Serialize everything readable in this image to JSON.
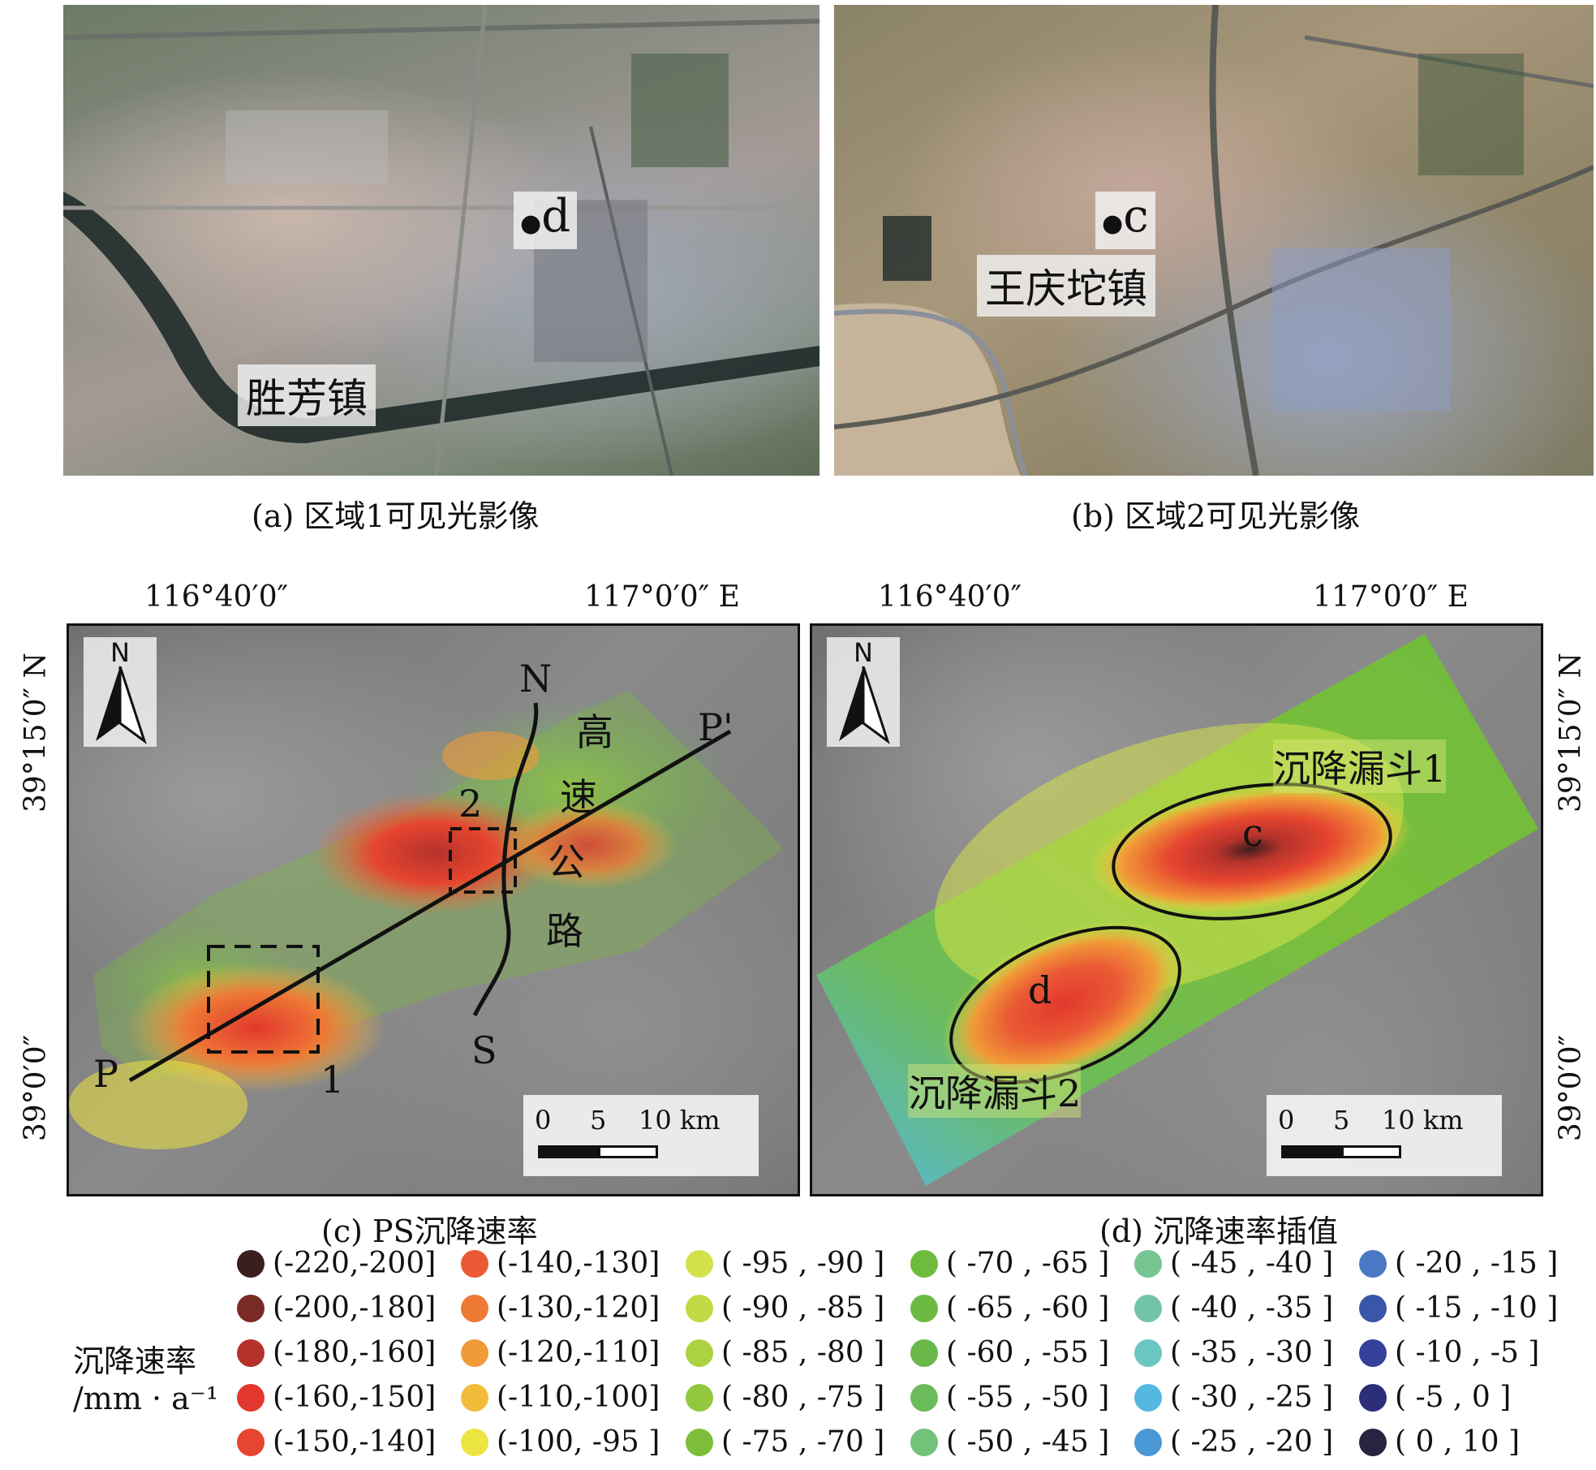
{
  "panels": {
    "a": {
      "caption": "(a) 区域1可见光影像",
      "place_label": "胜芳镇",
      "point_label": "d"
    },
    "b": {
      "caption": "(b) 区域2可见光影像",
      "place_label": "王庆坨镇",
      "point_label": "c"
    },
    "c": {
      "caption": "(c) PS沉降速率",
      "north": "N",
      "highway_label": [
        "高",
        "速",
        "公",
        "路"
      ],
      "highway_n": "N",
      "highway_s": "S",
      "profile_start": "P",
      "profile_end": "P'",
      "box1": "1",
      "box2": "2",
      "scale": {
        "t0": "0",
        "t5": "5",
        "t10": "10 km"
      }
    },
    "d": {
      "caption": "(d) 沉降速率插值",
      "north": "N",
      "funnel1": "沉降漏斗1",
      "funnel2": "沉降漏斗2",
      "point_c": "c",
      "point_d": "d",
      "scale": {
        "t0": "0",
        "t5": "5",
        "t10": "10 km"
      }
    }
  },
  "coords": {
    "lon1": "116°40′0″",
    "lon2": "117°0′0″  E",
    "lat1_left": "39°15′0″  N",
    "lat2_left": "39°0′0″",
    "lat1_right": "39°15′0″  N",
    "lat2_right": "39°0′0″"
  },
  "legend": {
    "title_line1": "沉降速率",
    "title_line2": "/mm · a⁻¹",
    "items": [
      {
        "label": "(-220,-200]",
        "color": "#3b1f1c"
      },
      {
        "label": "(-200,-180]",
        "color": "#7a2a24"
      },
      {
        "label": "(-180,-160]",
        "color": "#b5322c"
      },
      {
        "label": "(-160,-150]",
        "color": "#e2372e"
      },
      {
        "label": "(-150,-140]",
        "color": "#e6452f"
      },
      {
        "label": "(-140,-130]",
        "color": "#ea5a34"
      },
      {
        "label": "(-130,-120]",
        "color": "#ee7a35"
      },
      {
        "label": "(-120,-110]",
        "color": "#f19a38"
      },
      {
        "label": "(-110,-100]",
        "color": "#f2bc3b"
      },
      {
        "label": "(-100, -95 ]",
        "color": "#ece43f"
      },
      {
        "label": "( -95 , -90 ]",
        "color": "#d3e14a"
      },
      {
        "label": "( -90 , -85 ]",
        "color": "#c2da45"
      },
      {
        "label": "( -85 , -80 ]",
        "color": "#acd242"
      },
      {
        "label": "( -80 , -75 ]",
        "color": "#92c73e"
      },
      {
        "label": "( -75 , -70 ]",
        "color": "#7cbe3a"
      },
      {
        "label": "( -70 , -65 ]",
        "color": "#6fbb3e"
      },
      {
        "label": "( -65 , -60 ]",
        "color": "#6cb944"
      },
      {
        "label": "( -60 , -55 ]",
        "color": "#6ab84a"
      },
      {
        "label": "( -55 , -50 ]",
        "color": "#6cbb5a"
      },
      {
        "label": "( -50 , -45 ]",
        "color": "#72c27a"
      },
      {
        "label": "( -45 , -40 ]",
        "color": "#76c492"
      },
      {
        "label": "( -40 , -35 ]",
        "color": "#72c3a8"
      },
      {
        "label": "( -35 , -30 ]",
        "color": "#6cc6c2"
      },
      {
        "label": "( -30 , -25 ]",
        "color": "#55b8e0"
      },
      {
        "label": "( -25 , -20 ]",
        "color": "#4a98d6"
      },
      {
        "label": "( -20 , -15 ]",
        "color": "#4a78c4"
      },
      {
        "label": "( -15 , -10 ]",
        "color": "#3a56a8"
      },
      {
        "label": "( -10 ,  -5  ]",
        "color": "#34409a"
      },
      {
        "label": "(  -5  ,    0   ]",
        "color": "#2c2e7a"
      },
      {
        "label": "(    0  , 10  ]",
        "color": "#2a2340"
      }
    ]
  }
}
